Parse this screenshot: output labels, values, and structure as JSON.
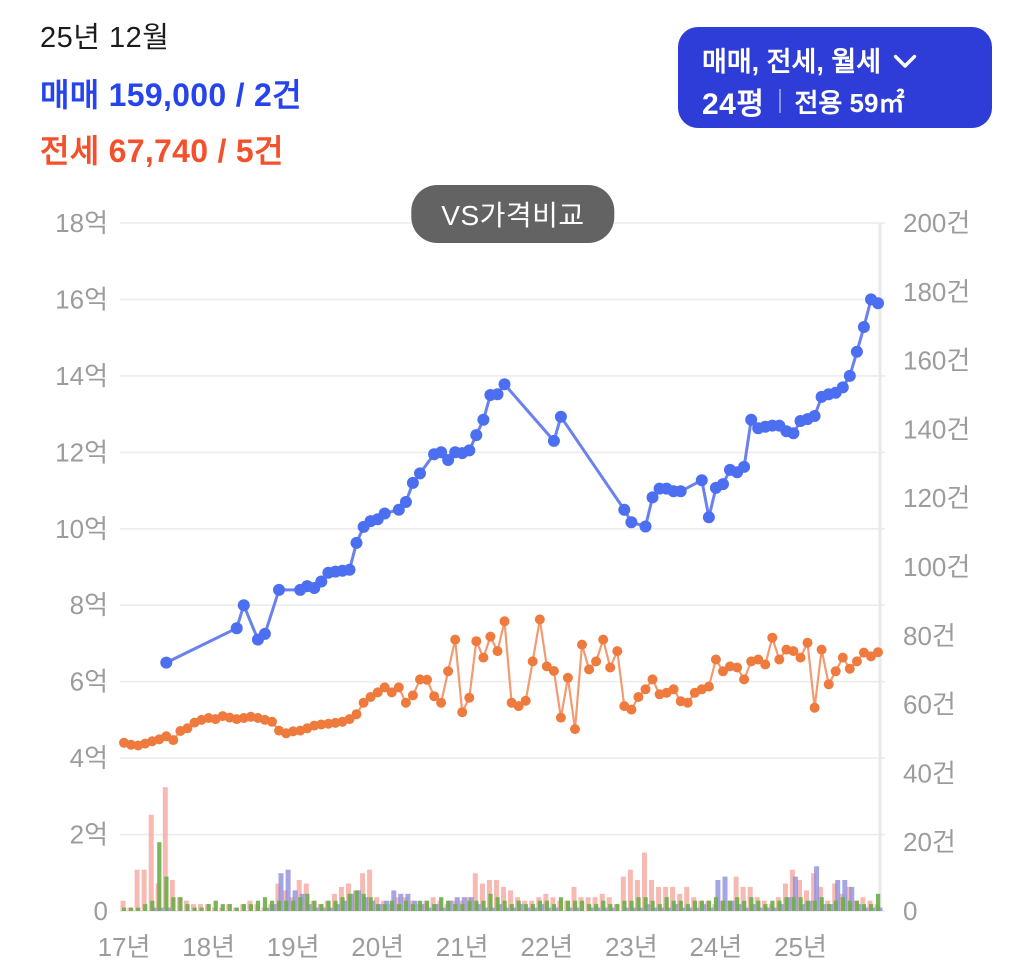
{
  "header": {
    "period": "25년 12월",
    "sale_summary": "매매 159,000 / 2건",
    "jeonse_summary": "전세 67,740 / 5건"
  },
  "filter_button": {
    "types": "매매, 전세, 월세",
    "pyeong": "24평",
    "exclusive_area": "전용 59㎡"
  },
  "colors": {
    "header_sale": "#2644ee",
    "header_jeonse": "#f5502c",
    "button_bg": "#2e3cd8",
    "pill_bg": "#636363",
    "axis_text": "#9c9c9c",
    "grid_line": "#ececec"
  },
  "chart_data": {
    "type": "mixed",
    "title": "VS가격비교",
    "grid": true,
    "x_axis": {
      "months": 108,
      "start": "2017-01",
      "end": "2025-12",
      "ticks": [
        "17년",
        "18년",
        "19년",
        "20년",
        "21년",
        "22년",
        "23년",
        "24년",
        "25년"
      ]
    },
    "price_axis": {
      "side": "left",
      "min": 0,
      "max": 18,
      "unit": "억",
      "ticks": [
        "18억",
        "16억",
        "14억",
        "12억",
        "10억",
        "8억",
        "6억",
        "4억",
        "2억",
        "0"
      ]
    },
    "volume_axis": {
      "side": "right",
      "min": 0,
      "max": 200,
      "unit": "건",
      "ticks": [
        "200건",
        "180건",
        "160건",
        "140건",
        "120건",
        "100건",
        "80건",
        "60건",
        "40건",
        "20건",
        "0"
      ]
    },
    "series": {
      "sale_price": {
        "label": "매매",
        "type": "line",
        "axis": "price",
        "dot_color": "#4c6ef0",
        "line_color": "#6a81ee",
        "values": [
          null,
          null,
          null,
          null,
          null,
          null,
          6.5,
          null,
          null,
          null,
          null,
          null,
          null,
          null,
          null,
          null,
          7.4,
          8.0,
          null,
          7.1,
          7.25,
          null,
          8.4,
          null,
          null,
          8.4,
          8.5,
          8.45,
          8.62,
          8.85,
          8.88,
          8.9,
          8.93,
          9.63,
          10.05,
          10.2,
          10.25,
          10.4,
          null,
          10.5,
          10.7,
          11.2,
          11.45,
          null,
          11.95,
          12.0,
          11.8,
          12.0,
          11.98,
          12.05,
          12.45,
          12.85,
          13.5,
          13.52,
          13.78,
          null,
          null,
          null,
          null,
          null,
          null,
          12.3,
          12.93,
          null,
          null,
          null,
          null,
          null,
          null,
          null,
          null,
          10.5,
          10.17,
          null,
          10.06,
          10.82,
          11.05,
          11.05,
          10.98,
          10.98,
          null,
          null,
          11.27,
          10.3,
          11.07,
          11.17,
          11.54,
          11.48,
          11.62,
          12.85,
          12.63,
          12.67,
          12.7,
          12.7,
          12.55,
          12.5,
          12.82,
          12.87,
          12.95,
          13.45,
          13.52,
          13.56,
          13.7,
          14.0,
          14.63,
          15.28,
          16.0,
          15.9
        ]
      },
      "jeonse_price": {
        "label": "전세",
        "type": "line",
        "axis": "price",
        "dot_color": "#ee7a3e",
        "line_color": "#f29a72",
        "values": [
          4.4,
          4.35,
          4.33,
          4.38,
          4.44,
          4.49,
          4.57,
          4.47,
          4.71,
          4.78,
          4.93,
          5.0,
          5.05,
          5.02,
          5.1,
          5.06,
          5.02,
          5.05,
          5.08,
          5.05,
          5.0,
          4.95,
          4.72,
          4.65,
          4.7,
          4.72,
          4.78,
          4.85,
          4.88,
          4.9,
          4.92,
          4.95,
          5.02,
          5.15,
          5.45,
          5.6,
          5.72,
          5.85,
          5.72,
          5.85,
          5.45,
          5.64,
          6.06,
          6.05,
          5.62,
          5.45,
          6.27,
          7.1,
          5.2,
          5.58,
          7.06,
          6.63,
          7.18,
          6.8,
          7.58,
          5.45,
          5.36,
          5.5,
          6.53,
          7.63,
          6.4,
          6.28,
          5.06,
          6.1,
          4.76,
          6.97,
          6.32,
          6.53,
          7.1,
          6.37,
          6.8,
          5.36,
          5.27,
          5.6,
          5.8,
          6.06,
          5.67,
          5.71,
          5.8,
          5.49,
          5.45,
          5.71,
          5.8,
          5.87,
          6.58,
          6.27,
          6.4,
          6.37,
          6.06,
          6.53,
          6.58,
          6.45,
          7.15,
          6.58,
          6.84,
          6.8,
          6.63,
          7.02,
          5.32,
          6.84,
          5.93,
          6.27,
          6.63,
          6.34,
          6.53,
          6.76,
          6.66,
          6.77
        ]
      },
      "sale_volume": {
        "label": "매매",
        "type": "bar",
        "axis": "volume",
        "color": "#f3a79e",
        "values": [
          3,
          1,
          12,
          12,
          28,
          8,
          36,
          9,
          4,
          3,
          2,
          2,
          2,
          1,
          1,
          2,
          1,
          2,
          3,
          2,
          1,
          2,
          8,
          6,
          4,
          9,
          8,
          3,
          2,
          3,
          5,
          7,
          8,
          6,
          11,
          12,
          4,
          3,
          2,
          4,
          4,
          3,
          2,
          3,
          4,
          3,
          2,
          3,
          3,
          4,
          11,
          8,
          9,
          9,
          7,
          6,
          4,
          3,
          3,
          4,
          5,
          4,
          3,
          3,
          7,
          4,
          4,
          4,
          5,
          4,
          2,
          10,
          12,
          9,
          17,
          9,
          7,
          7,
          7,
          5,
          7,
          4,
          3,
          3,
          2,
          3,
          3,
          10,
          7,
          7,
          4,
          3,
          2,
          4,
          8,
          12,
          9,
          6,
          11,
          7,
          3,
          8,
          5,
          7,
          3,
          4,
          3,
          2
        ]
      },
      "jeonse_volume": {
        "label": "전세",
        "type": "bar",
        "axis": "volume",
        "color": "#6fae4d",
        "values": [
          1,
          1,
          1,
          2,
          3,
          20,
          10,
          4,
          4,
          2,
          1,
          1,
          2,
          3,
          2,
          2,
          1,
          2,
          2,
          3,
          4,
          3,
          3,
          3,
          3,
          4,
          5,
          3,
          2,
          3,
          3,
          4,
          5,
          6,
          5,
          4,
          2,
          2,
          3,
          2,
          3,
          2,
          3,
          3,
          2,
          4,
          3,
          2,
          2,
          3,
          3,
          3,
          5,
          4,
          3,
          2,
          3,
          2,
          2,
          3,
          3,
          2,
          4,
          3,
          3,
          3,
          2,
          2,
          3,
          2,
          2,
          3,
          3,
          4,
          4,
          3,
          2,
          4,
          3,
          3,
          2,
          3,
          3,
          3,
          4,
          3,
          3,
          4,
          3,
          4,
          3,
          2,
          3,
          3,
          4,
          4,
          4,
          3,
          3,
          4,
          2,
          3,
          4,
          3,
          3,
          2,
          2,
          5
        ]
      },
      "wolse_volume": {
        "label": "월세",
        "type": "bar",
        "axis": "volume",
        "color": "#8f8edd",
        "values": [
          0,
          0,
          0,
          0,
          1,
          1,
          1,
          0,
          0,
          0,
          0,
          0,
          0,
          0,
          0,
          0,
          0,
          0,
          0,
          0,
          1,
          2,
          11,
          12,
          6,
          5,
          2,
          1,
          1,
          1,
          2,
          3,
          5,
          6,
          4,
          3,
          2,
          3,
          6,
          5,
          5,
          3,
          2,
          1,
          2,
          1,
          3,
          4,
          4,
          4,
          2,
          1,
          1,
          2,
          1,
          1,
          2,
          1,
          1,
          2,
          1,
          1,
          0,
          1,
          1,
          0,
          1,
          1,
          1,
          1,
          0,
          1,
          1,
          1,
          2,
          1,
          1,
          1,
          2,
          1,
          1,
          1,
          2,
          1,
          9,
          10,
          3,
          2,
          1,
          2,
          1,
          1,
          1,
          2,
          4,
          10,
          2,
          3,
          13,
          2,
          2,
          9,
          9,
          7,
          2,
          1,
          1,
          1
        ]
      }
    }
  }
}
